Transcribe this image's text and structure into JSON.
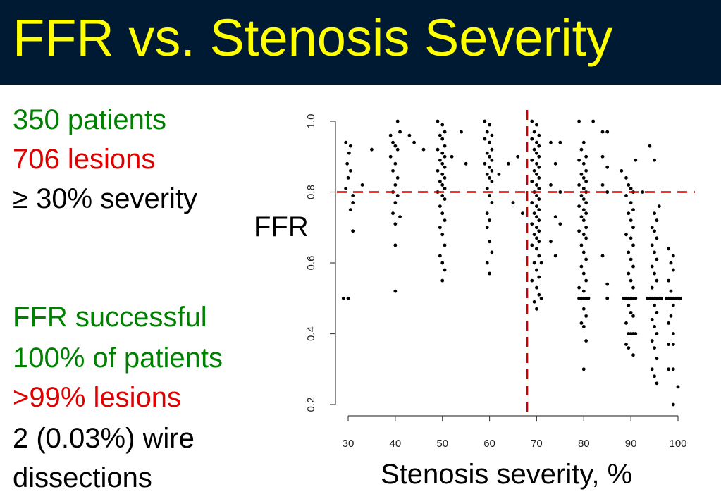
{
  "slide": {
    "title": "FFR vs. Stenosis Severity",
    "bullets": [
      {
        "text": "350 patients",
        "color": "#008000"
      },
      {
        "text": "706 lesions",
        "color": "#e00000"
      },
      {
        "text": "≥ 30% severity",
        "color": "#000000"
      },
      {
        "text": "FFR successful",
        "color": "#008000"
      },
      {
        "text": "100% of patients",
        "color": "#008000"
      },
      {
        "text": ">99% lesions",
        "color": "#e00000"
      },
      {
        "text": "2 (0.03%) wire",
        "color": "#000000"
      },
      {
        "text": "dissections",
        "color": "#000000"
      }
    ]
  },
  "chart_data": {
    "type": "scatter",
    "xlabel": "Stenosis severity, %",
    "ylabel": "FFR",
    "xlim": [
      30,
      100
    ],
    "ylim": [
      0.2,
      1.0
    ],
    "x_ticks": [
      "30",
      "40",
      "50",
      "60",
      "70",
      "80",
      "90",
      "100"
    ],
    "y_ticks": [
      "0.2",
      "0.4",
      "0.6",
      "0.8",
      "1.0"
    ],
    "reference_lines": [
      {
        "axis": "y",
        "value": 0.8,
        "style": "dashed",
        "color": "#cc0000"
      },
      {
        "axis": "x",
        "value": 68,
        "style": "dashed",
        "color": "#cc0000"
      }
    ],
    "point_color": "#000000",
    "points": [
      [
        29,
        0.5
      ],
      [
        30,
        0.5
      ],
      [
        29.5,
        0.94
      ],
      [
        30.5,
        0.93
      ],
      [
        30.2,
        0.91
      ],
      [
        29.8,
        0.88
      ],
      [
        30.5,
        0.86
      ],
      [
        30,
        0.84
      ],
      [
        29.5,
        0.81
      ],
      [
        31,
        0.77
      ],
      [
        30.5,
        0.75
      ],
      [
        31,
        0.69
      ],
      [
        31,
        0.79
      ],
      [
        33,
        0.82
      ],
      [
        35,
        0.92
      ],
      [
        39,
        0.96
      ],
      [
        39.5,
        0.94
      ],
      [
        40,
        0.93
      ],
      [
        40.5,
        0.92
      ],
      [
        39,
        0.9
      ],
      [
        40,
        0.88
      ],
      [
        39.5,
        0.86
      ],
      [
        40.5,
        0.84
      ],
      [
        40,
        0.82
      ],
      [
        39.5,
        0.8
      ],
      [
        40.5,
        0.79
      ],
      [
        40,
        0.77
      ],
      [
        39.5,
        0.74
      ],
      [
        41,
        0.73
      ],
      [
        40,
        0.71
      ],
      [
        40,
        0.65
      ],
      [
        40,
        0.52
      ],
      [
        40.5,
        1.0
      ],
      [
        41,
        0.97
      ],
      [
        43,
        0.96
      ],
      [
        44,
        0.94
      ],
      [
        46,
        0.92
      ],
      [
        49,
        1.0
      ],
      [
        50,
        0.99
      ],
      [
        50.5,
        0.97
      ],
      [
        49.5,
        0.96
      ],
      [
        50,
        0.95
      ],
      [
        50.5,
        0.93
      ],
      [
        49,
        0.92
      ],
      [
        50,
        0.91
      ],
      [
        50.5,
        0.9
      ],
      [
        49.5,
        0.89
      ],
      [
        50,
        0.88
      ],
      [
        50.5,
        0.87
      ],
      [
        49,
        0.86
      ],
      [
        50,
        0.85
      ],
      [
        50.5,
        0.84
      ],
      [
        49.5,
        0.83
      ],
      [
        50,
        0.82
      ],
      [
        50.5,
        0.81
      ],
      [
        49,
        0.8
      ],
      [
        50,
        0.79
      ],
      [
        50.5,
        0.78
      ],
      [
        49.5,
        0.76
      ],
      [
        50,
        0.74
      ],
      [
        50.5,
        0.72
      ],
      [
        49.5,
        0.7
      ],
      [
        50,
        0.68
      ],
      [
        50.5,
        0.65
      ],
      [
        49.5,
        0.62
      ],
      [
        50,
        0.6
      ],
      [
        50.5,
        0.58
      ],
      [
        50,
        0.55
      ],
      [
        52,
        0.9
      ],
      [
        54,
        0.97
      ],
      [
        55,
        0.88
      ],
      [
        59,
        1.0
      ],
      [
        60,
        0.99
      ],
      [
        59.5,
        0.97
      ],
      [
        60.5,
        0.96
      ],
      [
        59,
        0.95
      ],
      [
        60,
        0.94
      ],
      [
        60.5,
        0.92
      ],
      [
        59.5,
        0.91
      ],
      [
        60,
        0.9
      ],
      [
        60.5,
        0.89
      ],
      [
        59,
        0.88
      ],
      [
        60,
        0.87
      ],
      [
        60.5,
        0.86
      ],
      [
        59.5,
        0.85
      ],
      [
        60,
        0.84
      ],
      [
        60.5,
        0.83
      ],
      [
        59.5,
        0.81
      ],
      [
        60,
        0.79
      ],
      [
        60.5,
        0.77
      ],
      [
        59.5,
        0.74
      ],
      [
        60,
        0.72
      ],
      [
        59.5,
        0.7
      ],
      [
        60,
        0.66
      ],
      [
        60.5,
        0.63
      ],
      [
        59.5,
        0.6
      ],
      [
        60,
        0.57
      ],
      [
        62,
        0.85
      ],
      [
        64,
        0.88
      ],
      [
        66,
        0.9
      ],
      [
        65,
        0.77
      ],
      [
        67,
        0.74
      ],
      [
        69,
        1.0
      ],
      [
        70,
        0.99
      ],
      [
        69.5,
        0.97
      ],
      [
        70.5,
        0.96
      ],
      [
        69,
        0.95
      ],
      [
        70,
        0.94
      ],
      [
        70.5,
        0.93
      ],
      [
        69.5,
        0.92
      ],
      [
        70,
        0.91
      ],
      [
        70.5,
        0.9
      ],
      [
        69,
        0.89
      ],
      [
        70,
        0.88
      ],
      [
        70.5,
        0.87
      ],
      [
        69.5,
        0.86
      ],
      [
        70,
        0.85
      ],
      [
        70.5,
        0.84
      ],
      [
        69,
        0.83
      ],
      [
        70,
        0.82
      ],
      [
        70.5,
        0.81
      ],
      [
        69.5,
        0.8
      ],
      [
        70,
        0.79
      ],
      [
        70.5,
        0.78
      ],
      [
        69,
        0.77
      ],
      [
        70,
        0.76
      ],
      [
        70.5,
        0.75
      ],
      [
        69.5,
        0.74
      ],
      [
        70,
        0.73
      ],
      [
        70.5,
        0.72
      ],
      [
        69,
        0.71
      ],
      [
        70,
        0.7
      ],
      [
        70.5,
        0.69
      ],
      [
        69.5,
        0.68
      ],
      [
        70,
        0.67
      ],
      [
        70.5,
        0.66
      ],
      [
        69,
        0.65
      ],
      [
        70,
        0.64
      ],
      [
        70.5,
        0.62
      ],
      [
        69.5,
        0.6
      ],
      [
        70,
        0.58
      ],
      [
        70.5,
        0.56
      ],
      [
        69,
        0.55
      ],
      [
        70,
        0.53
      ],
      [
        70.5,
        0.51
      ],
      [
        69.5,
        0.49
      ],
      [
        70,
        0.47
      ],
      [
        71,
        0.6
      ],
      [
        71,
        0.5
      ],
      [
        73,
        0.94
      ],
      [
        74,
        0.88
      ],
      [
        75,
        0.94
      ],
      [
        73,
        0.82
      ],
      [
        75,
        0.8
      ],
      [
        74,
        0.73
      ],
      [
        75,
        0.71
      ],
      [
        73,
        0.66
      ],
      [
        74,
        0.62
      ],
      [
        79,
        1.0
      ],
      [
        80,
        0.94
      ],
      [
        79.5,
        0.92
      ],
      [
        80.5,
        0.9
      ],
      [
        79,
        0.89
      ],
      [
        80,
        0.88
      ],
      [
        80.5,
        0.86
      ],
      [
        79.5,
        0.85
      ],
      [
        80,
        0.84
      ],
      [
        80.5,
        0.83
      ],
      [
        79,
        0.82
      ],
      [
        80,
        0.81
      ],
      [
        80.5,
        0.8
      ],
      [
        79.5,
        0.79
      ],
      [
        80,
        0.78
      ],
      [
        80.5,
        0.77
      ],
      [
        79,
        0.76
      ],
      [
        80,
        0.75
      ],
      [
        80.5,
        0.74
      ],
      [
        79.5,
        0.73
      ],
      [
        80,
        0.72
      ],
      [
        80.5,
        0.7
      ],
      [
        79,
        0.69
      ],
      [
        80,
        0.68
      ],
      [
        80.5,
        0.67
      ],
      [
        79.5,
        0.65
      ],
      [
        80,
        0.63
      ],
      [
        80.5,
        0.61
      ],
      [
        79.5,
        0.59
      ],
      [
        80,
        0.57
      ],
      [
        80.5,
        0.55
      ],
      [
        79,
        0.53
      ],
      [
        80,
        0.52
      ],
      [
        79,
        0.5
      ],
      [
        79.5,
        0.5
      ],
      [
        80,
        0.5
      ],
      [
        80.5,
        0.5
      ],
      [
        81,
        0.5
      ],
      [
        80,
        0.47
      ],
      [
        80.5,
        0.45
      ],
      [
        79.5,
        0.43
      ],
      [
        80,
        0.42
      ],
      [
        80.5,
        0.38
      ],
      [
        80,
        0.3
      ],
      [
        82,
        1.0
      ],
      [
        84,
        0.97
      ],
      [
        85,
        0.97
      ],
      [
        84,
        0.9
      ],
      [
        85,
        0.87
      ],
      [
        84,
        0.82
      ],
      [
        85,
        0.8
      ],
      [
        84,
        0.62
      ],
      [
        85,
        0.54
      ],
      [
        85,
        0.5
      ],
      [
        88,
        0.86
      ],
      [
        89,
        0.84
      ],
      [
        89.5,
        0.82
      ],
      [
        90,
        0.81
      ],
      [
        90.5,
        0.8
      ],
      [
        89,
        0.79
      ],
      [
        90,
        0.77
      ],
      [
        90.5,
        0.75
      ],
      [
        89.5,
        0.74
      ],
      [
        90,
        0.72
      ],
      [
        90.5,
        0.7
      ],
      [
        89,
        0.68
      ],
      [
        90,
        0.67
      ],
      [
        90.5,
        0.65
      ],
      [
        89.5,
        0.63
      ],
      [
        90,
        0.61
      ],
      [
        90.5,
        0.59
      ],
      [
        89.5,
        0.57
      ],
      [
        90,
        0.55
      ],
      [
        90.5,
        0.53
      ],
      [
        88.5,
        0.5
      ],
      [
        89,
        0.5
      ],
      [
        89.5,
        0.5
      ],
      [
        90,
        0.5
      ],
      [
        90.5,
        0.5
      ],
      [
        91,
        0.5
      ],
      [
        89.5,
        0.48
      ],
      [
        90,
        0.46
      ],
      [
        90.5,
        0.45
      ],
      [
        89,
        0.43
      ],
      [
        89.5,
        0.4
      ],
      [
        90,
        0.4
      ],
      [
        90.5,
        0.4
      ],
      [
        91,
        0.4
      ],
      [
        89,
        0.37
      ],
      [
        89.5,
        0.36
      ],
      [
        90.5,
        0.34
      ],
      [
        91,
        0.89
      ],
      [
        94,
        0.93
      ],
      [
        95,
        0.89
      ],
      [
        96,
        0.76
      ],
      [
        95,
        0.74
      ],
      [
        95.5,
        0.72
      ],
      [
        94.5,
        0.7
      ],
      [
        95,
        0.69
      ],
      [
        95.5,
        0.67
      ],
      [
        94.5,
        0.65
      ],
      [
        95,
        0.63
      ],
      [
        95.5,
        0.61
      ],
      [
        94.5,
        0.59
      ],
      [
        95,
        0.57
      ],
      [
        95.5,
        0.55
      ],
      [
        94.5,
        0.53
      ],
      [
        93.5,
        0.5
      ],
      [
        94,
        0.5
      ],
      [
        94.5,
        0.5
      ],
      [
        95,
        0.5
      ],
      [
        95.5,
        0.5
      ],
      [
        96,
        0.5
      ],
      [
        96.5,
        0.5
      ],
      [
        95,
        0.48
      ],
      [
        95.5,
        0.46
      ],
      [
        94.5,
        0.44
      ],
      [
        95,
        0.42
      ],
      [
        95.5,
        0.4
      ],
      [
        94.5,
        0.38
      ],
      [
        95,
        0.36
      ],
      [
        95.5,
        0.33
      ],
      [
        94.5,
        0.3
      ],
      [
        95,
        0.28
      ],
      [
        95.5,
        0.26
      ],
      [
        92.5,
        0.8
      ],
      [
        98,
        0.64
      ],
      [
        99,
        0.62
      ],
      [
        98.5,
        0.6
      ],
      [
        99,
        0.58
      ],
      [
        98,
        0.55
      ],
      [
        98.5,
        0.52
      ],
      [
        97.5,
        0.5
      ],
      [
        98,
        0.5
      ],
      [
        98.5,
        0.5
      ],
      [
        99,
        0.5
      ],
      [
        99.5,
        0.5
      ],
      [
        100,
        0.5
      ],
      [
        100.5,
        0.5
      ],
      [
        99,
        0.48
      ],
      [
        98.5,
        0.45
      ],
      [
        98,
        0.43
      ],
      [
        99,
        0.4
      ],
      [
        98,
        0.37
      ],
      [
        99,
        0.37
      ],
      [
        98,
        0.3
      ],
      [
        99,
        0.3
      ],
      [
        100,
        0.25
      ],
      [
        99,
        0.2
      ]
    ]
  }
}
